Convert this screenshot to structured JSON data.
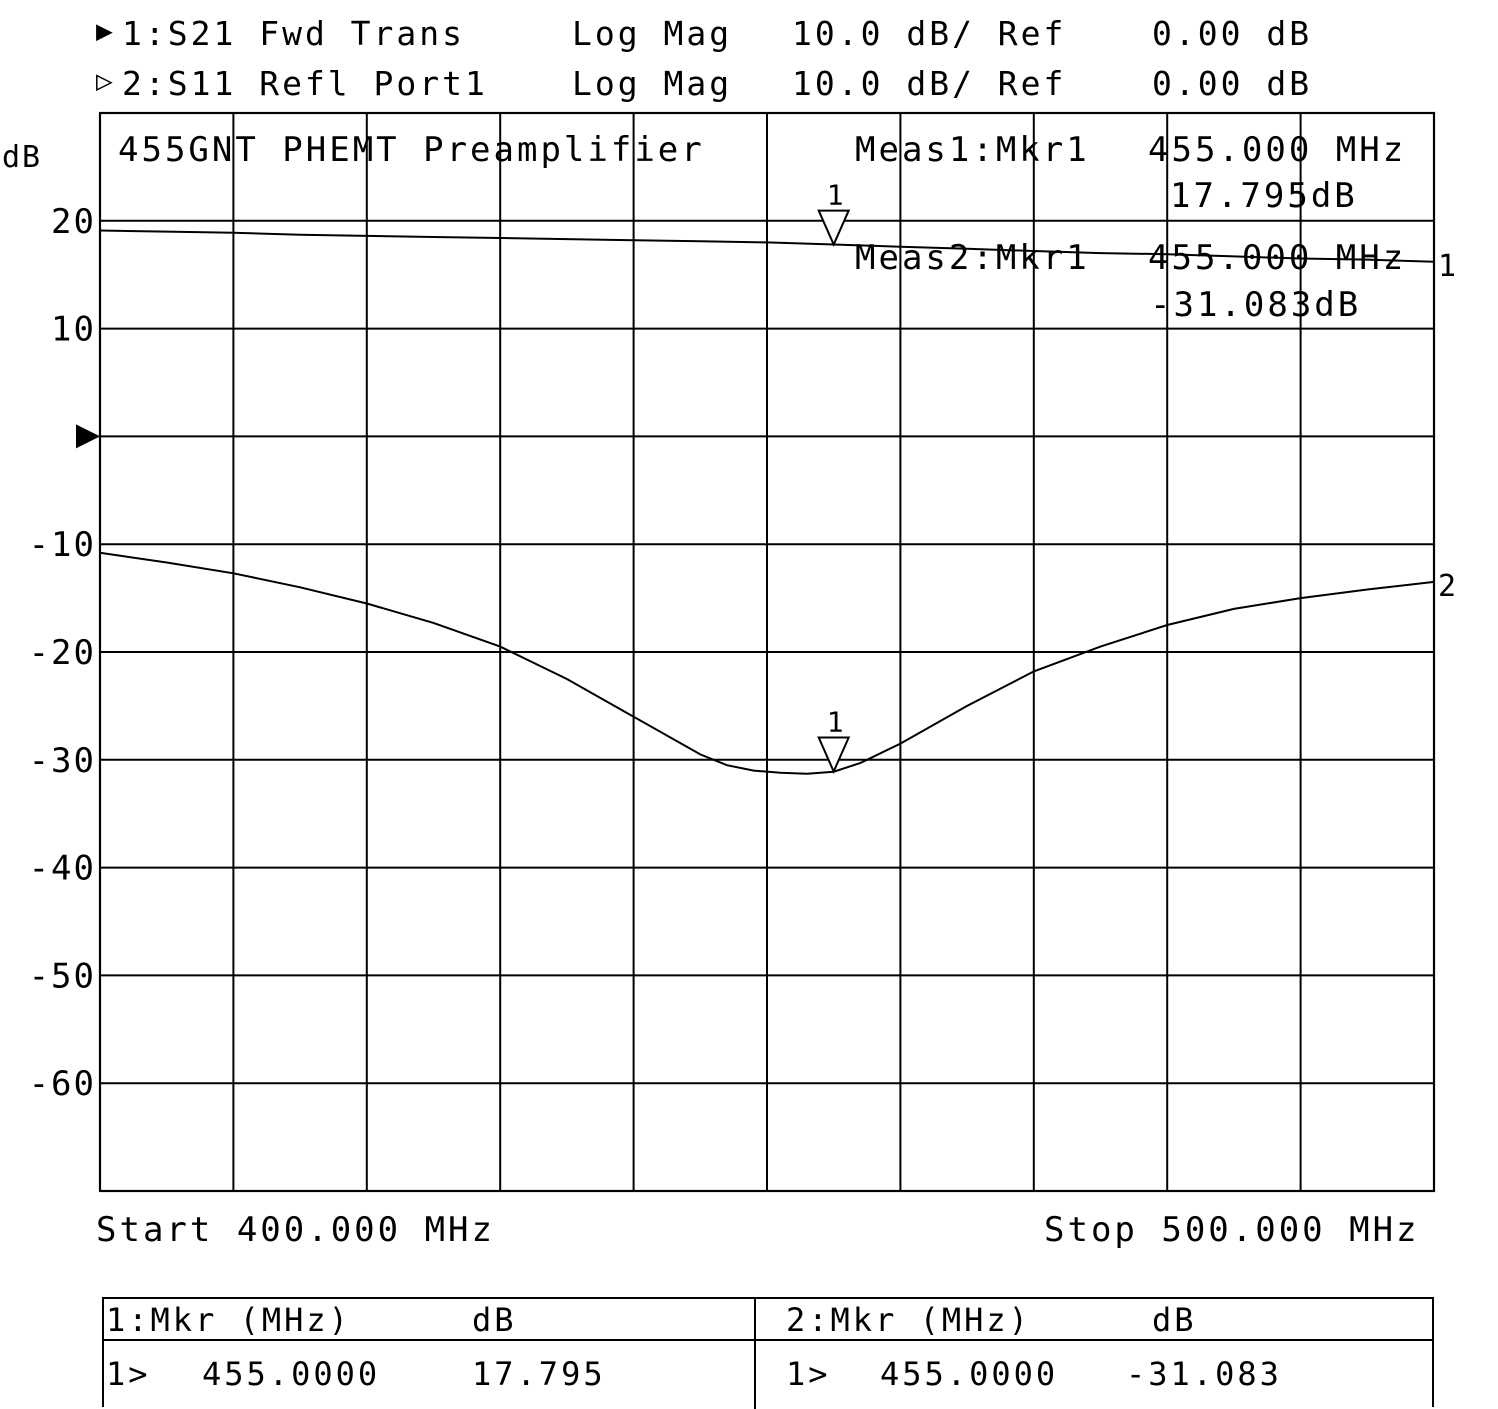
{
  "header": {
    "trace1": {
      "marker_symbol": "▶",
      "label": "1:S21 Fwd Trans",
      "format": "Log Mag",
      "scale": "10.0 dB/ Ref",
      "ref": "0.00 dB"
    },
    "trace2": {
      "marker_symbol": "▷",
      "label": "2:S11 Refl Port1",
      "format": "Log Mag",
      "scale": "10.0 dB/ Ref",
      "ref": "0.00 dB"
    }
  },
  "chart_data": {
    "type": "line",
    "title": "455GNT PHEMT Preamplifier",
    "ylabel": "dB",
    "xlabel": "",
    "xlim": [
      400,
      500
    ],
    "ylim": [
      -70,
      30
    ],
    "y_ticks": [
      20,
      10,
      0,
      -10,
      -20,
      -30,
      -40,
      -50,
      -60
    ],
    "y_tick_labels": [
      "20",
      "10",
      "",
      "-10",
      "-20",
      "-30",
      "-40",
      "-50",
      "-60"
    ],
    "x_divisions": 10,
    "grid": true,
    "ref_level": 0,
    "series": [
      {
        "name": "1",
        "x": [
          400,
          405,
          410,
          415,
          420,
          425,
          430,
          435,
          440,
          445,
          450,
          455,
          460,
          465,
          470,
          475,
          480,
          485,
          490,
          495,
          500
        ],
        "values": [
          19.1,
          19.0,
          18.9,
          18.7,
          18.6,
          18.5,
          18.4,
          18.3,
          18.2,
          18.1,
          18.0,
          17.8,
          17.6,
          17.4,
          17.2,
          17.0,
          16.9,
          16.7,
          16.5,
          16.4,
          16.2
        ]
      },
      {
        "name": "2",
        "x": [
          400,
          405,
          410,
          415,
          420,
          425,
          430,
          435,
          440,
          445,
          447,
          449,
          451,
          453,
          455,
          457,
          460,
          465,
          470,
          475,
          480,
          485,
          490,
          495,
          500
        ],
        "values": [
          -10.8,
          -11.7,
          -12.7,
          -14.0,
          -15.5,
          -17.3,
          -19.5,
          -22.5,
          -26.0,
          -29.5,
          -30.5,
          -31.0,
          -31.2,
          -31.3,
          -31.1,
          -30.3,
          -28.5,
          -25.0,
          -21.8,
          -19.5,
          -17.5,
          -16.0,
          -15.0,
          -14.2,
          -13.5
        ]
      }
    ],
    "markers": [
      {
        "trace": "1",
        "label": "1",
        "x": 455.0,
        "y": 17.795
      },
      {
        "trace": "2",
        "label": "1",
        "x": 455.0,
        "y": -31.083
      }
    ],
    "annotations": {
      "meas1_label": "Meas1:Mkr1",
      "meas1_freq": "455.000 MHz",
      "meas1_value": "17.795dB",
      "meas2_label": "Meas2:Mkr1",
      "meas2_freq": "455.000 MHz",
      "meas2_value": "-31.083dB"
    },
    "start_label": "Start 400.000 MHz",
    "stop_label": "Stop 500.000 MHz"
  },
  "marker_table": {
    "trace1": {
      "header_label": "1:Mkr (MHz)",
      "header_unit": "dB",
      "row_marker": "1>",
      "row_freq": "455.0000",
      "row_value": "17.795"
    },
    "trace2": {
      "header_label": "2:Mkr (MHz)",
      "header_unit": "dB",
      "row_marker": "1>",
      "row_freq": "455.0000",
      "row_value": "-31.083"
    }
  }
}
